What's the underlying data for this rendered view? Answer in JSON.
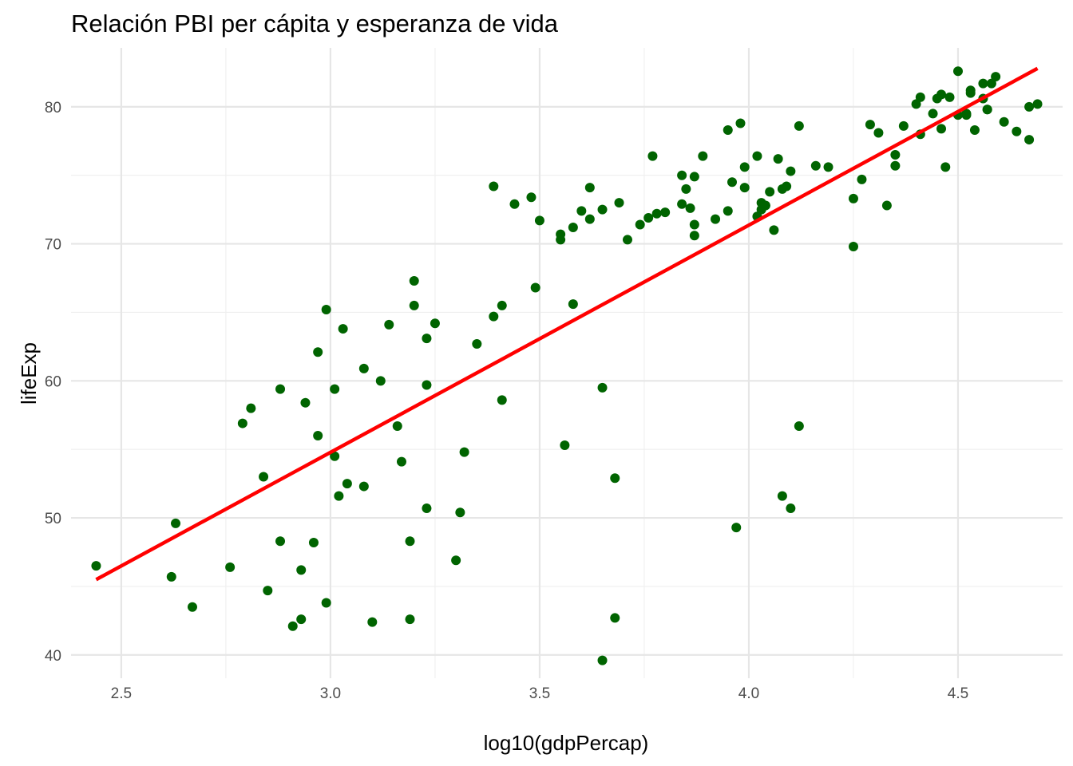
{
  "chart_data": {
    "type": "scatter",
    "title": "Relación PBI per cápita y esperanza de vida",
    "xlabel": "log10(gdpPercap)",
    "ylabel": "lifeExp",
    "xlim": [
      2.38,
      4.75
    ],
    "ylim": [
      38.3,
      84.3
    ],
    "x_ticks": [
      2.5,
      3.0,
      3.5,
      4.0,
      4.5
    ],
    "x_tick_labels": [
      "2.5",
      "3.0",
      "3.5",
      "4.0",
      "4.5"
    ],
    "y_ticks": [
      40,
      50,
      60,
      70,
      80
    ],
    "y_tick_labels": [
      "40",
      "50",
      "60",
      "70",
      "80"
    ],
    "grid": true,
    "legend": "none",
    "point_color": "#006400",
    "trend_line": {
      "color": "#ff0000",
      "x": [
        2.44,
        4.69
      ],
      "y": [
        45.5,
        82.8
      ]
    },
    "points": [
      [
        2.44,
        46.5
      ],
      [
        2.62,
        45.7
      ],
      [
        2.63,
        49.6
      ],
      [
        2.67,
        43.5
      ],
      [
        2.76,
        46.4
      ],
      [
        2.79,
        56.9
      ],
      [
        2.81,
        58.0
      ],
      [
        2.84,
        53.0
      ],
      [
        2.85,
        44.7
      ],
      [
        2.88,
        59.4
      ],
      [
        2.88,
        48.3
      ],
      [
        2.91,
        42.1
      ],
      [
        2.93,
        42.6
      ],
      [
        2.93,
        46.2
      ],
      [
        2.94,
        58.4
      ],
      [
        2.96,
        48.2
      ],
      [
        2.97,
        62.1
      ],
      [
        2.97,
        56.0
      ],
      [
        2.99,
        43.8
      ],
      [
        2.99,
        65.2
      ],
      [
        3.01,
        59.4
      ],
      [
        3.01,
        54.5
      ],
      [
        3.02,
        51.6
      ],
      [
        3.03,
        63.8
      ],
      [
        3.04,
        52.5
      ],
      [
        3.08,
        60.9
      ],
      [
        3.08,
        52.3
      ],
      [
        3.1,
        42.4
      ],
      [
        3.12,
        60.0
      ],
      [
        3.14,
        64.1
      ],
      [
        3.16,
        56.7
      ],
      [
        3.17,
        54.1
      ],
      [
        3.19,
        48.3
      ],
      [
        3.19,
        42.6
      ],
      [
        3.2,
        67.3
      ],
      [
        3.2,
        65.5
      ],
      [
        3.23,
        63.1
      ],
      [
        3.23,
        59.7
      ],
      [
        3.23,
        50.7
      ],
      [
        3.25,
        64.2
      ],
      [
        3.3,
        46.9
      ],
      [
        3.31,
        50.4
      ],
      [
        3.32,
        54.8
      ],
      [
        3.35,
        62.7
      ],
      [
        3.39,
        64.7
      ],
      [
        3.39,
        74.2
      ],
      [
        3.41,
        65.5
      ],
      [
        3.41,
        58.6
      ],
      [
        3.44,
        72.9
      ],
      [
        3.48,
        73.4
      ],
      [
        3.49,
        66.8
      ],
      [
        3.5,
        71.7
      ],
      [
        3.55,
        70.7
      ],
      [
        3.55,
        70.3
      ],
      [
        3.56,
        55.3
      ],
      [
        3.58,
        65.6
      ],
      [
        3.58,
        71.2
      ],
      [
        3.6,
        72.4
      ],
      [
        3.62,
        71.8
      ],
      [
        3.62,
        74.1
      ],
      [
        3.65,
        59.5
      ],
      [
        3.65,
        72.5
      ],
      [
        3.65,
        39.6
      ],
      [
        3.68,
        42.7
      ],
      [
        3.68,
        52.9
      ],
      [
        3.69,
        73.0
      ],
      [
        3.71,
        70.3
      ],
      [
        3.74,
        71.4
      ],
      [
        3.76,
        71.9
      ],
      [
        3.77,
        76.4
      ],
      [
        3.78,
        72.2
      ],
      [
        3.8,
        72.3
      ],
      [
        3.84,
        75.0
      ],
      [
        3.84,
        72.9
      ],
      [
        3.85,
        74.0
      ],
      [
        3.86,
        72.6
      ],
      [
        3.87,
        71.4
      ],
      [
        3.87,
        70.6
      ],
      [
        3.87,
        74.9
      ],
      [
        3.89,
        76.4
      ],
      [
        3.92,
        71.8
      ],
      [
        3.95,
        72.4
      ],
      [
        3.95,
        78.3
      ],
      [
        3.96,
        74.5
      ],
      [
        3.97,
        49.3
      ],
      [
        3.98,
        78.8
      ],
      [
        3.99,
        75.6
      ],
      [
        3.99,
        74.1
      ],
      [
        4.02,
        72.0
      ],
      [
        4.02,
        76.4
      ],
      [
        4.03,
        73.0
      ],
      [
        4.03,
        72.5
      ],
      [
        4.04,
        72.8
      ],
      [
        4.05,
        73.8
      ],
      [
        4.06,
        71.0
      ],
      [
        4.07,
        76.2
      ],
      [
        4.08,
        74.0
      ],
      [
        4.08,
        51.6
      ],
      [
        4.09,
        74.2
      ],
      [
        4.1,
        50.7
      ],
      [
        4.1,
        75.3
      ],
      [
        4.12,
        78.6
      ],
      [
        4.12,
        56.7
      ],
      [
        4.16,
        75.7
      ],
      [
        4.19,
        75.6
      ],
      [
        4.25,
        73.3
      ],
      [
        4.25,
        69.8
      ],
      [
        4.27,
        74.7
      ],
      [
        4.29,
        78.7
      ],
      [
        4.31,
        78.1
      ],
      [
        4.33,
        72.8
      ],
      [
        4.35,
        75.7
      ],
      [
        4.35,
        76.5
      ],
      [
        4.37,
        78.6
      ],
      [
        4.4,
        80.2
      ],
      [
        4.41,
        80.7
      ],
      [
        4.41,
        78.0
      ],
      [
        4.44,
        79.5
      ],
      [
        4.45,
        80.6
      ],
      [
        4.46,
        78.4
      ],
      [
        4.46,
        80.9
      ],
      [
        4.47,
        75.6
      ],
      [
        4.48,
        80.7
      ],
      [
        4.5,
        82.6
      ],
      [
        4.5,
        79.4
      ],
      [
        4.52,
        79.4
      ],
      [
        4.52,
        79.5
      ],
      [
        4.53,
        81.0
      ],
      [
        4.53,
        81.2
      ],
      [
        4.54,
        78.3
      ],
      [
        4.56,
        81.7
      ],
      [
        4.56,
        80.6
      ],
      [
        4.57,
        79.8
      ],
      [
        4.57,
        79.8
      ],
      [
        4.58,
        81.7
      ],
      [
        4.59,
        82.2
      ],
      [
        4.61,
        78.9
      ],
      [
        4.64,
        78.2
      ],
      [
        4.67,
        80.0
      ],
      [
        4.67,
        77.6
      ],
      [
        4.69,
        80.2
      ]
    ]
  }
}
